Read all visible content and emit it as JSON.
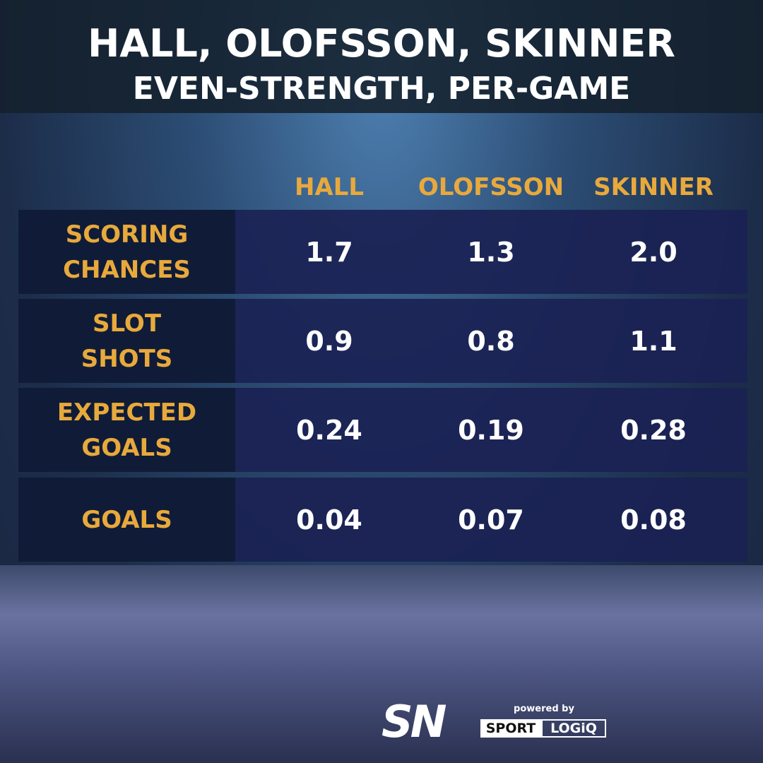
{
  "header": {
    "title": "HALL, OLOFSSON, SKINNER",
    "subtitle": "EVEN-STRENGTH, PER-GAME"
  },
  "table": {
    "columns": [
      "HALL",
      "OLOFSSON",
      "SKINNER"
    ],
    "rows": [
      {
        "label": "SCORING CHANCES",
        "values": [
          "1.7",
          "1.3",
          "2.0"
        ]
      },
      {
        "label": "SLOT SHOTS",
        "values": [
          "0.9",
          "0.8",
          "1.1"
        ]
      },
      {
        "label": "EXPECTED GOALS",
        "values": [
          "0.24",
          "0.19",
          "0.28"
        ]
      },
      {
        "label": "GOALS",
        "values": [
          "0.04",
          "0.07",
          "0.08"
        ]
      }
    ]
  },
  "footer": {
    "logo": "SN",
    "powered_by": "powered by",
    "brand_left": "SPORT",
    "brand_right": "LOGiQ"
  }
}
